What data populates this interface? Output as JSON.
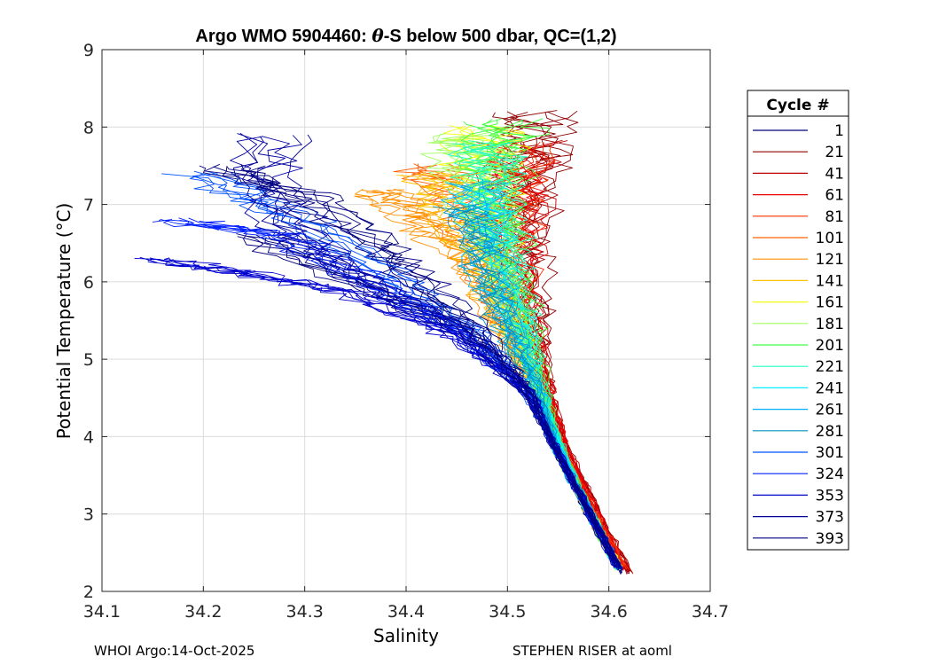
{
  "chart_data": {
    "type": "line",
    "title": "Argo WMO 5904460: θ-S below 500 dbar,  QC=(1,2)",
    "xlabel": "Salinity",
    "ylabel": "Potential Temperature (°C)",
    "xlim": [
      34.1,
      34.7
    ],
    "ylim": [
      2,
      9
    ],
    "xticks": [
      "34.1",
      "34.2",
      "34.3",
      "34.4",
      "34.5",
      "34.6",
      "34.7"
    ],
    "yticks": [
      "2",
      "3",
      "4",
      "5",
      "6",
      "7",
      "8",
      "9"
    ],
    "grid": true,
    "legend_title": "Cycle #",
    "legend_position": "right",
    "series": [
      {
        "name": "1",
        "color": "#00007f",
        "values": [
          [
            34.615,
            2.25
          ],
          [
            34.58,
            3.0
          ],
          [
            34.55,
            3.8
          ],
          [
            34.52,
            4.6
          ],
          [
            34.46,
            5.3
          ],
          [
            34.36,
            5.95
          ],
          [
            34.25,
            6.6
          ]
        ]
      },
      {
        "name": "21",
        "color": "#8f0000",
        "values": [
          [
            34.62,
            2.25
          ],
          [
            34.59,
            3.0
          ],
          [
            34.56,
            3.8
          ],
          [
            34.54,
            4.6
          ],
          [
            34.53,
            5.5
          ],
          [
            34.52,
            6.5
          ],
          [
            34.53,
            7.5
          ],
          [
            34.53,
            8.2
          ]
        ]
      },
      {
        "name": "41",
        "color": "#c00000",
        "values": [
          [
            34.62,
            2.25
          ],
          [
            34.59,
            3.0
          ],
          [
            34.56,
            3.8
          ],
          [
            34.54,
            4.6
          ],
          [
            34.52,
            5.5
          ],
          [
            34.51,
            6.6
          ],
          [
            34.52,
            7.8
          ]
        ]
      },
      {
        "name": "61",
        "color": "#ef0000",
        "values": [
          [
            34.615,
            2.3
          ],
          [
            34.585,
            3.05
          ],
          [
            34.56,
            3.8
          ],
          [
            34.54,
            4.6
          ],
          [
            34.52,
            5.5
          ],
          [
            34.51,
            6.6
          ],
          [
            34.51,
            7.6
          ]
        ]
      },
      {
        "name": "81",
        "color": "#ff3000",
        "values": [
          [
            34.615,
            2.3
          ],
          [
            34.585,
            3.05
          ],
          [
            34.555,
            3.8
          ],
          [
            34.535,
            4.6
          ],
          [
            34.51,
            5.5
          ],
          [
            34.51,
            6.6
          ],
          [
            34.52,
            7.8
          ]
        ]
      },
      {
        "name": "101",
        "color": "#ff6000",
        "values": [
          [
            34.61,
            2.3
          ],
          [
            34.58,
            3.05
          ],
          [
            34.555,
            3.8
          ],
          [
            34.53,
            4.6
          ],
          [
            34.5,
            5.4
          ],
          [
            34.48,
            6.3
          ],
          [
            34.46,
            7.0
          ],
          [
            34.43,
            7.5
          ]
        ]
      },
      {
        "name": "121",
        "color": "#ff9000",
        "values": [
          [
            34.61,
            2.3
          ],
          [
            34.58,
            3.05
          ],
          [
            34.555,
            3.8
          ],
          [
            34.53,
            4.6
          ],
          [
            34.5,
            5.4
          ],
          [
            34.47,
            6.2
          ],
          [
            34.42,
            6.8
          ],
          [
            34.38,
            7.2
          ]
        ]
      },
      {
        "name": "141",
        "color": "#ffc000",
        "values": [
          [
            34.61,
            2.3
          ],
          [
            34.58,
            3.05
          ],
          [
            34.55,
            3.8
          ],
          [
            34.53,
            4.6
          ],
          [
            34.5,
            5.4
          ],
          [
            34.48,
            6.2
          ],
          [
            34.45,
            6.9
          ],
          [
            34.43,
            7.4
          ]
        ]
      },
      {
        "name": "161",
        "color": "#f0ff10",
        "values": [
          [
            34.61,
            2.3
          ],
          [
            34.58,
            3.05
          ],
          [
            34.55,
            3.8
          ],
          [
            34.53,
            4.6
          ],
          [
            34.51,
            5.5
          ],
          [
            34.49,
            6.5
          ],
          [
            34.48,
            7.4
          ],
          [
            34.48,
            8.0
          ]
        ]
      },
      {
        "name": "181",
        "color": "#a0ff60",
        "values": [
          [
            34.61,
            2.3
          ],
          [
            34.58,
            3.05
          ],
          [
            34.55,
            3.8
          ],
          [
            34.53,
            4.6
          ],
          [
            34.51,
            5.5
          ],
          [
            34.49,
            6.5
          ],
          [
            34.47,
            7.4
          ],
          [
            34.46,
            7.9
          ]
        ]
      },
      {
        "name": "201",
        "color": "#40ff40",
        "values": [
          [
            34.61,
            2.3
          ],
          [
            34.58,
            3.05
          ],
          [
            34.555,
            3.8
          ],
          [
            34.535,
            4.6
          ],
          [
            34.52,
            5.5
          ],
          [
            34.5,
            6.5
          ],
          [
            34.49,
            7.4
          ],
          [
            34.5,
            8.1
          ]
        ]
      },
      {
        "name": "221",
        "color": "#20ffc0",
        "values": [
          [
            34.61,
            2.3
          ],
          [
            34.58,
            3.05
          ],
          [
            34.555,
            3.8
          ],
          [
            34.535,
            4.6
          ],
          [
            34.515,
            5.5
          ],
          [
            34.5,
            6.5
          ],
          [
            34.49,
            7.3
          ],
          [
            34.48,
            7.8
          ]
        ]
      },
      {
        "name": "241",
        "color": "#00f0ff",
        "values": [
          [
            34.61,
            2.3
          ],
          [
            34.58,
            3.05
          ],
          [
            34.555,
            3.8
          ],
          [
            34.53,
            4.6
          ],
          [
            34.51,
            5.5
          ],
          [
            34.49,
            6.4
          ],
          [
            34.48,
            7.2
          ]
        ]
      },
      {
        "name": "261",
        "color": "#00b0ff",
        "values": [
          [
            34.61,
            2.3
          ],
          [
            34.58,
            3.05
          ],
          [
            34.55,
            3.8
          ],
          [
            34.53,
            4.6
          ],
          [
            34.5,
            5.5
          ],
          [
            34.48,
            6.4
          ],
          [
            34.47,
            7.3
          ]
        ]
      },
      {
        "name": "281",
        "color": "#0090c0",
        "values": [
          [
            34.61,
            2.3
          ],
          [
            34.58,
            3.05
          ],
          [
            34.55,
            3.8
          ],
          [
            34.53,
            4.6
          ],
          [
            34.5,
            5.4
          ],
          [
            34.48,
            6.2
          ],
          [
            34.46,
            7.0
          ]
        ]
      },
      {
        "name": "301",
        "color": "#0050ff",
        "values": [
          [
            34.61,
            2.3
          ],
          [
            34.58,
            3.05
          ],
          [
            34.55,
            3.8
          ],
          [
            34.52,
            4.6
          ],
          [
            34.47,
            5.3
          ],
          [
            34.4,
            6.0
          ],
          [
            34.3,
            6.8
          ],
          [
            34.2,
            7.4
          ]
        ]
      },
      {
        "name": "324",
        "color": "#0020ff",
        "values": [
          [
            34.61,
            2.3
          ],
          [
            34.58,
            3.05
          ],
          [
            34.55,
            3.8
          ],
          [
            34.52,
            4.6
          ],
          [
            34.46,
            5.3
          ],
          [
            34.38,
            5.9
          ],
          [
            34.28,
            6.6
          ],
          [
            34.17,
            6.8
          ]
        ]
      },
      {
        "name": "353",
        "color": "#0000d0",
        "values": [
          [
            34.61,
            2.3
          ],
          [
            34.58,
            3.05
          ],
          [
            34.55,
            3.8
          ],
          [
            34.52,
            4.6
          ],
          [
            34.45,
            5.3
          ],
          [
            34.35,
            5.85
          ],
          [
            34.25,
            6.1
          ],
          [
            34.15,
            6.3
          ]
        ]
      },
      {
        "name": "373",
        "color": "#0000a0",
        "values": [
          [
            34.61,
            2.3
          ],
          [
            34.58,
            3.05
          ],
          [
            34.55,
            3.8
          ],
          [
            34.52,
            4.6
          ],
          [
            34.46,
            5.4
          ],
          [
            34.35,
            6.1
          ],
          [
            34.28,
            6.8
          ],
          [
            34.26,
            7.9
          ]
        ]
      },
      {
        "name": "393",
        "color": "#000080",
        "values": [
          [
            34.61,
            2.3
          ],
          [
            34.58,
            3.05
          ],
          [
            34.55,
            3.8
          ],
          [
            34.52,
            4.6
          ],
          [
            34.47,
            5.4
          ],
          [
            34.4,
            6.2
          ],
          [
            34.32,
            7.0
          ],
          [
            34.22,
            7.5
          ]
        ]
      }
    ]
  },
  "footer": {
    "left": "WHOI Argo:14-Oct-2025",
    "right": "STEPHEN RISER at aoml"
  }
}
